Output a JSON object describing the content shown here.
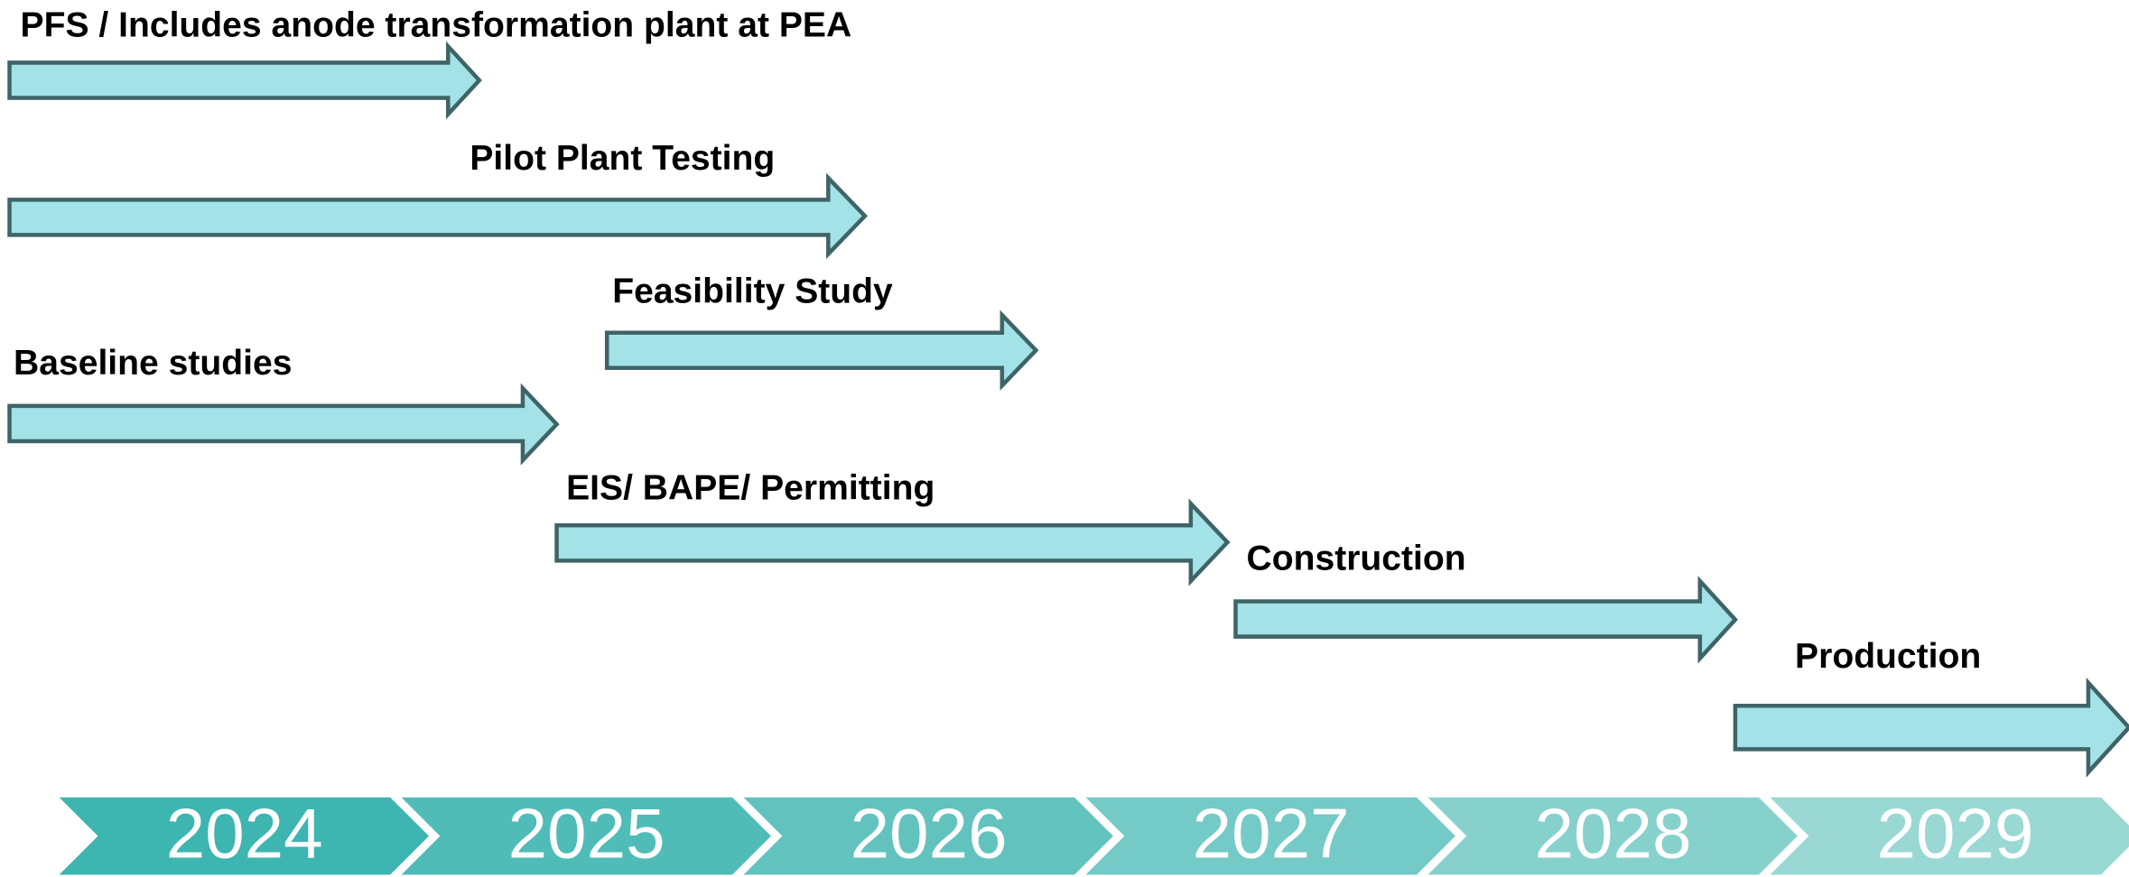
{
  "tasks": [
    {
      "label": "PFS / Includes anode transformation plant at PEA"
    },
    {
      "label": "Pilot Plant Testing"
    },
    {
      "label": "Feasibility  Study"
    },
    {
      "label": "Baseline studies"
    },
    {
      "label": "EIS/ BAPE/ Permitting"
    },
    {
      "label": "Construction"
    },
    {
      "label": "Production"
    }
  ],
  "years": [
    "2024",
    "2025",
    "2026",
    "2027",
    "2028",
    "2029"
  ]
}
